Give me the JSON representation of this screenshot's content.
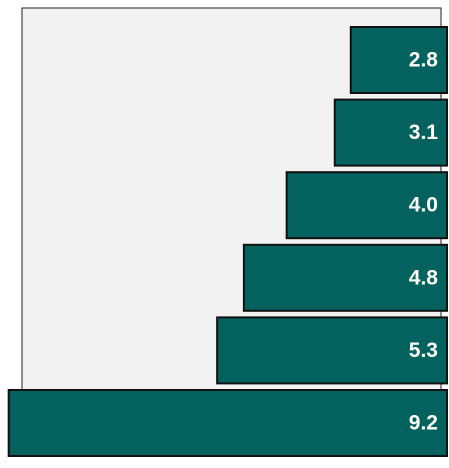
{
  "chart_data": {
    "type": "bar",
    "orientation": "horizontal",
    "x_reversed": true,
    "values": [
      2.8,
      3.1,
      4.0,
      4.8,
      5.3,
      9.2
    ],
    "value_labels": [
      "2.8",
      "3.1",
      "4.0",
      "4.8",
      "5.3",
      "9.2"
    ],
    "color": "#03625e",
    "xlim": [
      1,
      9.4
    ]
  }
}
